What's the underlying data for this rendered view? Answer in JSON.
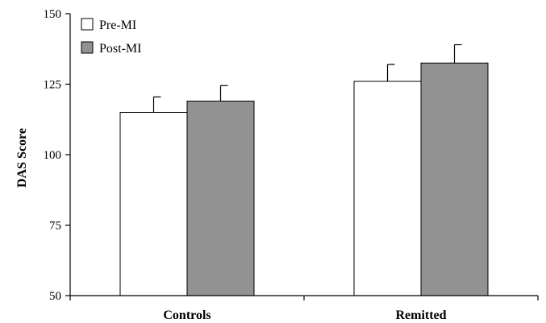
{
  "chart_data": {
    "type": "bar",
    "categories": [
      "Controls",
      "Remitted"
    ],
    "series": [
      {
        "name": "Pre-MI",
        "values": [
          115,
          126
        ],
        "errors": [
          5.5,
          6
        ],
        "color": "#ffffff"
      },
      {
        "name": "Post-MI",
        "values": [
          119,
          132.5
        ],
        "errors": [
          5.5,
          6.5
        ],
        "color": "#929292"
      }
    ],
    "xlabel": "",
    "ylabel": "DAS Score",
    "ylim": [
      50,
      150
    ],
    "yticks": [
      50,
      75,
      100,
      125,
      150
    ],
    "grid": false,
    "legend_position": "top-left"
  }
}
